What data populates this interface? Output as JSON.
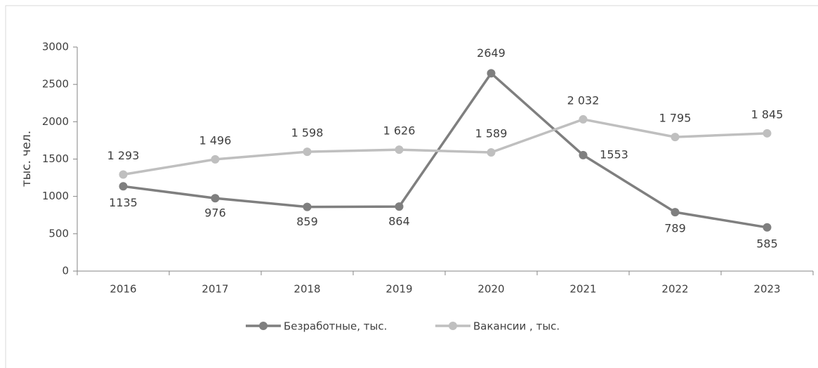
{
  "chart_data": {
    "type": "line",
    "y_label": "тыс. чел.",
    "categories": [
      "2016",
      "2017",
      "2018",
      "2019",
      "2020",
      "2021",
      "2022",
      "2023"
    ],
    "series": [
      {
        "name": "Безработные, тыс.",
        "color": "#7f7f7f",
        "values": [
          1135,
          976,
          859,
          864,
          2649,
          1553,
          789,
          585
        ]
      },
      {
        "name": "Вакансии , тыс.",
        "color": "#bfbfbf",
        "values": [
          1293,
          1496,
          1598,
          1626,
          1589,
          2032,
          1795,
          1845
        ],
        "value_labels": [
          "1 293",
          "1 496",
          "1 598",
          "1 626",
          "1 589",
          "2 032",
          "1 795",
          "1 845"
        ]
      }
    ],
    "ylim": [
      0,
      3000
    ],
    "yticks": [
      0,
      500,
      1000,
      1500,
      2000,
      2500,
      3000
    ],
    "legend": "bottom"
  }
}
